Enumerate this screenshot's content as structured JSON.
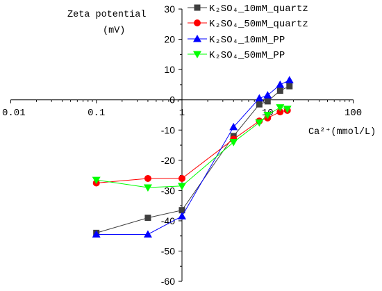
{
  "chart_data": {
    "type": "line",
    "xlabel": "Ca²⁺(mmol/L)",
    "ylabel": [
      "Zeta potential",
      "(mV)"
    ],
    "x_scale": "log",
    "xlim": [
      0.01,
      100
    ],
    "ylim": [
      -60,
      30
    ],
    "x_ticks": [
      0.01,
      0.1,
      1,
      10,
      100
    ],
    "y_ticks": [
      30,
      20,
      10,
      0,
      -10,
      -20,
      -30,
      -40,
      -50,
      -60
    ],
    "grid": false,
    "legend_position": "top",
    "series": [
      {
        "name": "K₂SO₄_10mM_quartz",
        "color": "#3f3f3f",
        "marker": "square",
        "x": [
          0.1,
          0.4,
          1,
          4,
          8,
          10,
          14,
          18
        ],
        "y": [
          -44,
          -39,
          -36.5,
          -12,
          -1.5,
          -0.5,
          3,
          4.5
        ]
      },
      {
        "name": "K₂SO₄_50mM_quartz",
        "color": "#ff0000",
        "marker": "circle",
        "x": [
          0.1,
          0.4,
          1,
          4,
          8,
          10,
          14,
          17
        ],
        "y": [
          -27.5,
          -26,
          -26,
          -13,
          -7,
          -6,
          -4,
          -3.5
        ]
      },
      {
        "name": "K₂SO₄_10mM_PP",
        "color": "#0000ff",
        "marker": "triangle-up",
        "x": [
          0.1,
          0.4,
          1,
          4,
          8,
          10,
          14,
          18
        ],
        "y": [
          -44.5,
          -44.5,
          -38.5,
          -9,
          0.5,
          1.5,
          5,
          6.5
        ]
      },
      {
        "name": "K₂SO₄_50mM_PP",
        "color": "#00ff00",
        "marker": "triangle-down",
        "x": [
          0.1,
          0.4,
          1,
          4,
          8,
          10,
          14,
          17
        ],
        "y": [
          -26.5,
          -29,
          -28.5,
          -14,
          -7.5,
          -5,
          -2.5,
          -3
        ]
      }
    ]
  }
}
